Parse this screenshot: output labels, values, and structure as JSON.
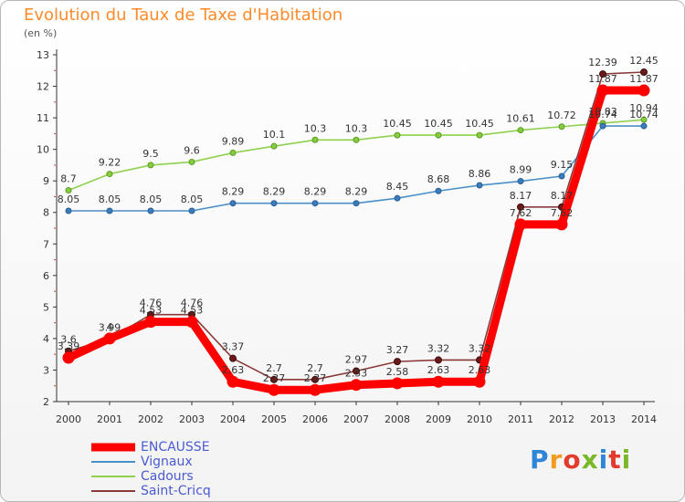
{
  "title": "Evolution du Taux de Taxe d'Habitation",
  "subtitle": "(en %)",
  "logo": {
    "text": "Proxiti",
    "letter_colors": [
      "#2f86d6",
      "#f29c1f",
      "#e23b2e",
      "#7ab829",
      "#2f86d6",
      "#e23b2e",
      "#7ab829"
    ]
  },
  "chart_data": {
    "type": "line",
    "x": [
      2000,
      2001,
      2002,
      2003,
      2004,
      2005,
      2006,
      2007,
      2008,
      2009,
      2010,
      2011,
      2012,
      2013,
      2014
    ],
    "ylim": [
      2,
      13
    ],
    "yticks": [
      2,
      3,
      4,
      5,
      6,
      7,
      8,
      9,
      10,
      11,
      12,
      13
    ],
    "grid": false,
    "legend_position": "bottom-left",
    "series": [
      {
        "name": "ENCAUSSE",
        "color": "#ff0000",
        "values": [
          3.39,
          4.0,
          4.53,
          4.53,
          2.63,
          2.37,
          2.37,
          2.53,
          2.58,
          2.63,
          2.63,
          7.62,
          7.62,
          11.87,
          11.87
        ],
        "labels": [
          "3.39",
          "4",
          "4.53",
          "4.53",
          "2.63",
          "2.37",
          "2.37",
          "2.53",
          "2.58",
          "2.63",
          "2.63",
          "7.62",
          "7.62",
          "11.87",
          "11.87"
        ]
      },
      {
        "name": "Vignaux",
        "color": "#4a90c8",
        "values": [
          8.05,
          8.05,
          8.05,
          8.05,
          8.29,
          8.29,
          8.29,
          8.29,
          8.45,
          8.68,
          8.86,
          8.99,
          9.15,
          10.74,
          10.74
        ],
        "labels": [
          "8.05",
          "8.05",
          "8.05",
          "8.05",
          "8.29",
          "8.29",
          "8.29",
          "8.29",
          "8.45",
          "8.68",
          "8.86",
          "8.99",
          "9.15",
          "10.74",
          "10.74"
        ]
      },
      {
        "name": "Cadours",
        "color": "#8fd14f",
        "values": [
          8.7,
          9.22,
          9.5,
          9.6,
          9.89,
          10.1,
          10.3,
          10.3,
          10.45,
          10.45,
          10.45,
          10.61,
          10.72,
          10.83,
          10.94
        ],
        "labels": [
          "8.7",
          "9.22",
          "9.5",
          "9.6",
          "9.89",
          "10.1",
          "10.3",
          "10.3",
          "10.45",
          "10.45",
          "10.45",
          "10.61",
          "10.72",
          "10.83",
          "10.94"
        ]
      },
      {
        "name": "Saint-Cricq",
        "color": "#8b3a3a",
        "values": [
          3.6,
          3.99,
          4.76,
          4.76,
          3.37,
          2.7,
          2.7,
          2.97,
          3.27,
          3.32,
          3.32,
          8.17,
          8.17,
          12.39,
          12.45
        ],
        "labels": [
          "3.6",
          "3.99",
          "4.76",
          "4.76",
          "3.37",
          "2.7",
          "2.7",
          "2.97",
          "3.27",
          "3.32",
          "3.32",
          "8.17",
          "8.17",
          "12.39",
          "12.45"
        ]
      }
    ]
  }
}
